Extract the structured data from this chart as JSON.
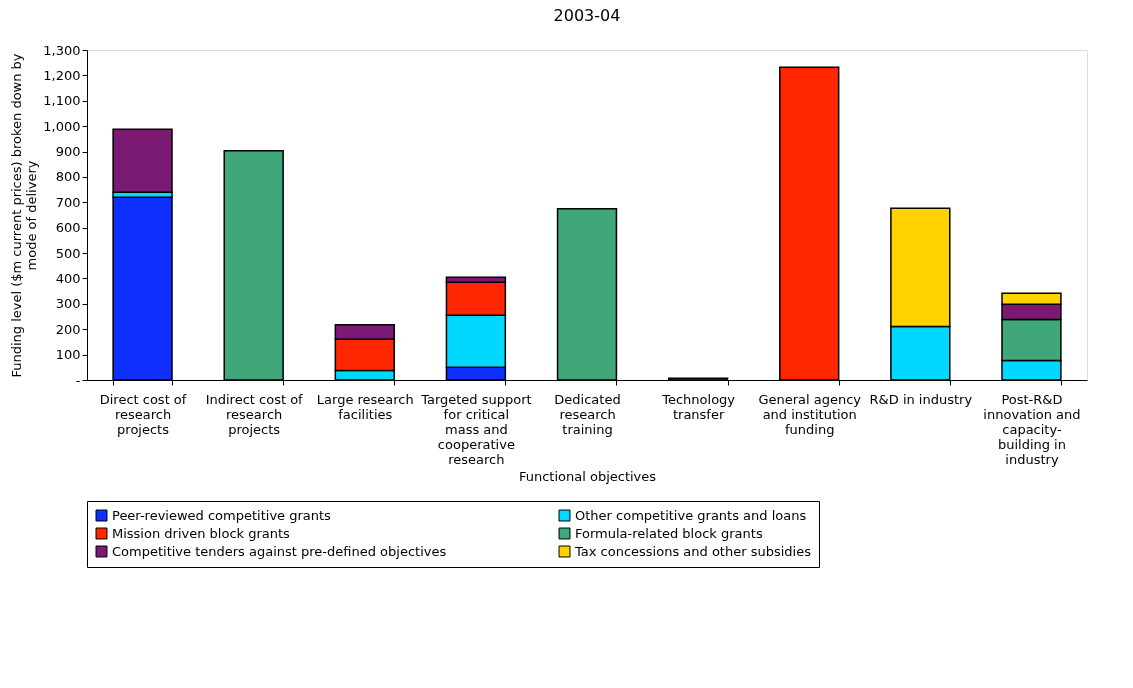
{
  "chart_data": {
    "type": "bar",
    "stacked": true,
    "title": "2003-04",
    "xlabel": "Functional objectives",
    "ylabel": "Funding level ($m current prices) broken down by mode of delivery",
    "categories": [
      "Direct cost of research projects",
      "Indirect cost of research projects",
      "Large research facilities",
      "Targeted support for critical mass and cooperative research",
      "Dedicated research training",
      "Technology transfer",
      "General agency and institution funding",
      "R&D in industry",
      "Post-R&D innovation and capacity-building in industry"
    ],
    "series": [
      {
        "name": "Peer-reviewed competitive grants",
        "color": "#0f2fff",
        "values": [
          720,
          null,
          null,
          50,
          null,
          null,
          null,
          null,
          null
        ]
      },
      {
        "name": "Other competitive grants and loans",
        "color": "#00d8ff",
        "values": [
          20,
          null,
          37,
          205,
          null,
          null,
          null,
          211,
          77
        ]
      },
      {
        "name": "Mission driven block grants",
        "color": "#ff2600",
        "values": [
          null,
          null,
          124,
          130,
          null,
          null,
          1232,
          null,
          null
        ]
      },
      {
        "name": "Formula-related block grants",
        "color": "#3fa77a",
        "values": [
          null,
          903,
          null,
          null,
          675,
          7,
          null,
          null,
          161
        ]
      },
      {
        "name": "Competitive tenders against pre-defined objectives",
        "color": "#7a1a75",
        "values": [
          248,
          null,
          57,
          20,
          null,
          null,
          null,
          null,
          60
        ]
      },
      {
        "name": "Tax concessions and other subsidies",
        "color": "#ffd200",
        "values": [
          null,
          null,
          null,
          null,
          null,
          null,
          null,
          466,
          44
        ]
      }
    ],
    "ylim": [
      0,
      1300
    ],
    "yticks": [
      {
        "value": 0,
        "label": "-"
      },
      {
        "value": 100,
        "label": "100"
      },
      {
        "value": 200,
        "label": "200"
      },
      {
        "value": 300,
        "label": "300"
      },
      {
        "value": 400,
        "label": "400"
      },
      {
        "value": 500,
        "label": "500"
      },
      {
        "value": 600,
        "label": "600"
      },
      {
        "value": 700,
        "label": "700"
      },
      {
        "value": 800,
        "label": "800"
      },
      {
        "value": 900,
        "label": "900"
      },
      {
        "value": 1000,
        "label": "1,000"
      },
      {
        "value": 1100,
        "label": "1,100"
      },
      {
        "value": 1200,
        "label": "1,200"
      },
      {
        "value": 1300,
        "label": "1,300"
      }
    ],
    "grid": false,
    "legend": "bottom"
  }
}
